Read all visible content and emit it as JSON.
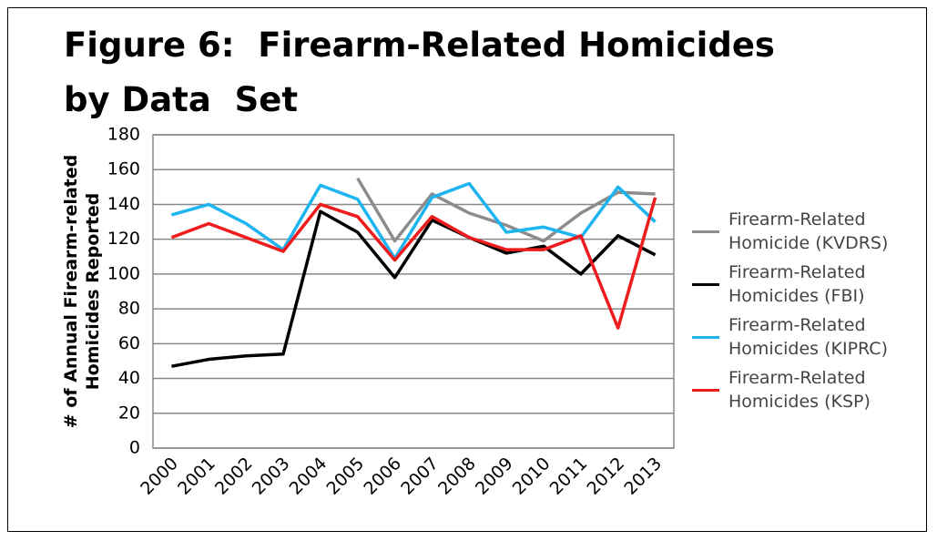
{
  "chart_data": {
    "type": "line",
    "title": "Figure 6:  Firearm-Related Homicides by Data  Set",
    "y_label": "# of Annual Firearm-related Homicides Reported",
    "categories": [
      "2000",
      "2001",
      "2002",
      "2003",
      "2004",
      "2005",
      "2006",
      "2007",
      "2008",
      "2009",
      "2010",
      "2011",
      "2012",
      "2013"
    ],
    "series": [
      {
        "name": "Firearm-Related Homicide (KVDRS)",
        "color": "#8c8c8c",
        "values": [
          null,
          null,
          null,
          null,
          null,
          155,
          119,
          146,
          135,
          128,
          119,
          135,
          147,
          146
        ]
      },
      {
        "name": "Firearm-Related Homicides (FBI)",
        "color": "#000000",
        "values": [
          47,
          51,
          53,
          54,
          136,
          124,
          98,
          131,
          121,
          112,
          116,
          100,
          122,
          111
        ]
      },
      {
        "name": "Firearm-Related Homicides (KIPRC)",
        "color": "#1eb4f0",
        "values": [
          134,
          140,
          129,
          114,
          151,
          143,
          109,
          144,
          152,
          124,
          127,
          121,
          150,
          130
        ]
      },
      {
        "name": "Firearm-Related Homicides (KSP)",
        "color": "#ee1c1c",
        "values": [
          121,
          129,
          121,
          113,
          140,
          133,
          108,
          133,
          121,
          114,
          114,
          122,
          69,
          144
        ]
      }
    ],
    "ylim": [
      0,
      180
    ],
    "yticks": [
      0,
      20,
      40,
      60,
      80,
      100,
      120,
      140,
      160,
      180
    ],
    "grid": true,
    "legend": "right"
  }
}
